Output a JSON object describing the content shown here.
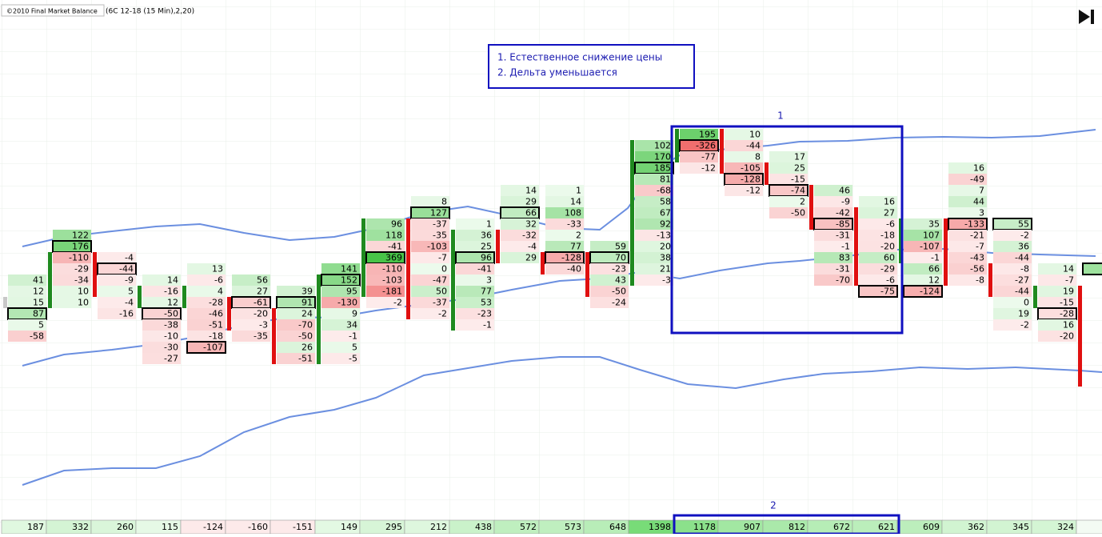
{
  "header": {
    "indicator": "©2010 Final Market Balance",
    "params": "(6C 12-18 (15 Min),2,20)"
  },
  "note": {
    "lines": [
      "1. Естественное снижение цены",
      "2. Дельта уменьшается"
    ]
  },
  "box_labels": [
    "1",
    "2"
  ],
  "columns": [
    {
      "level": 13,
      "cells": [
        41,
        12,
        15,
        87,
        5,
        -58
      ],
      "boxed": 3,
      "body": [
        2,
        2
      ],
      "body_color": "#c8c8c8",
      "total": 187
    },
    {
      "level": 9,
      "cells": [
        122,
        176,
        -110,
        -29,
        -34,
        10,
        10
      ],
      "boxed": 1,
      "body": [
        2,
        6
      ],
      "body_color": "#1f8a1f",
      "total": 332
    },
    {
      "level": 11,
      "cells": [
        -4,
        -44,
        -9,
        5,
        -4,
        -16
      ],
      "boxed": 1,
      "body": [
        0,
        3
      ],
      "body_color": "#e01010",
      "total": 260
    },
    {
      "level": 13,
      "cells": [
        14,
        -16,
        12,
        -50,
        -38,
        -10,
        -30,
        -27
      ],
      "boxed": 3,
      "body": [
        1,
        2
      ],
      "body_color": "#1f8a1f",
      "total": 115
    },
    {
      "level": 12,
      "cells": [
        13,
        -6,
        4,
        -28,
        -46,
        -51,
        -18,
        -107
      ],
      "boxed": 7,
      "body": [
        2,
        3
      ],
      "body_color": "#1f8a1f",
      "total": -124
    },
    {
      "level": 13,
      "cells": [
        56,
        27,
        -61,
        -20,
        -3,
        -35
      ],
      "boxed": 2,
      "body": [
        2,
        4
      ],
      "body_color": "#e01010",
      "total": -160
    },
    {
      "level": 14,
      "cells": [
        39,
        91,
        24,
        -70,
        -50,
        26,
        -51
      ],
      "boxed": 1,
      "body": [
        2,
        6
      ],
      "body_color": "#e01010",
      "total": -151
    },
    {
      "level": 12,
      "cells": [
        141,
        152,
        95,
        -130,
        9,
        34,
        -1,
        5,
        -5
      ],
      "boxed": 1,
      "body": [
        1,
        8
      ],
      "body_color": "#1f8a1f",
      "total": 149
    },
    {
      "level": 8,
      "cells": [
        96,
        118,
        -41,
        369,
        -110,
        -103,
        -181,
        -2
      ],
      "boxed": 3,
      "body": [
        0,
        6
      ],
      "body_color": "#1f8a1f",
      "total": 295
    },
    {
      "level": 6,
      "cells": [
        8,
        127,
        -37,
        -35,
        -103,
        -7,
        0,
        -47,
        50,
        -37,
        -2
      ],
      "boxed": 1,
      "body": [
        2,
        10
      ],
      "body_color": "#e01010",
      "total": 212
    },
    {
      "level": 8,
      "cells": [
        1,
        36,
        25,
        96,
        -41,
        3,
        77,
        53,
        -23,
        -1
      ],
      "boxed": 3,
      "body": [
        1,
        9
      ],
      "body_color": "#1f8a1f",
      "total": 438
    },
    {
      "level": 5,
      "cells": [
        14,
        29,
        66,
        32,
        -32,
        -4,
        29
      ],
      "boxed": 2,
      "body": [
        4,
        6
      ],
      "body_color": "#e01010",
      "total": 572
    },
    {
      "level": 5,
      "cells": [
        1,
        14,
        108,
        -33,
        2,
        77,
        -128,
        -40
      ],
      "boxed": 6,
      "body": [
        6,
        7
      ],
      "body_color": "#e01010",
      "total": 573
    },
    {
      "level": 10,
      "cells": [
        59,
        70,
        -23,
        43,
        -50,
        -24
      ],
      "boxed": 1,
      "body": [
        1,
        4
      ],
      "body_color": "#e01010",
      "total": 648
    },
    {
      "level": 1,
      "cells": [
        102,
        170,
        185,
        81,
        -68,
        58,
        67,
        92,
        -13,
        20,
        38,
        21,
        -3
      ],
      "boxed": 2,
      "body": [
        0,
        12
      ],
      "body_color": "#1f8a1f",
      "total": 1398
    },
    {
      "level": 0,
      "cells": [
        195,
        -326,
        -77,
        -12
      ],
      "boxed": 1,
      "body": [
        0,
        2
      ],
      "body_color": "#1f8a1f",
      "total": 1178
    },
    {
      "level": 0,
      "cells": [
        10,
        -44,
        8,
        -105,
        -128,
        -12
      ],
      "boxed": 4,
      "body": [
        0,
        3
      ],
      "body_color": "#e01010",
      "total": 907
    },
    {
      "level": 2,
      "cells": [
        17,
        25,
        -15,
        -74,
        2,
        -50
      ],
      "boxed": 3,
      "body": [
        1,
        2
      ],
      "body_color": "#e01010",
      "total": 812
    },
    {
      "level": 5,
      "cells": [
        46,
        -9,
        -42,
        -85,
        -31,
        -1,
        83,
        -31,
        -70
      ],
      "boxed": 3,
      "body": [
        0,
        3
      ],
      "body_color": "#e01010",
      "total": 672
    },
    {
      "level": 6,
      "cells": [
        16,
        27,
        -6,
        -18,
        -20,
        60,
        -29,
        -6,
        -75
      ],
      "boxed": 8,
      "body": [
        1,
        7
      ],
      "body_color": "#e01010",
      "total": 621
    },
    {
      "level": 8,
      "cells": [
        35,
        107,
        -107,
        -1,
        66,
        12,
        -124
      ],
      "boxed": 6,
      "body": [
        0,
        3
      ],
      "body_color": "#1f8a1f",
      "total": 609
    },
    {
      "level": 3,
      "cells": [
        16,
        -49,
        7,
        44,
        3,
        -133,
        -21,
        -7,
        -43,
        -56,
        -8
      ],
      "boxed": 5,
      "body": [
        5,
        10
      ],
      "body_color": "#e01010",
      "total": 362
    },
    {
      "level": 8,
      "cells": [
        55,
        -2,
        36,
        -44,
        -8,
        -27,
        -44,
        0,
        19,
        -2
      ],
      "boxed": 0,
      "body": [
        4,
        6
      ],
      "body_color": "#e01010",
      "total": 345
    },
    {
      "level": 12,
      "cells": [
        14,
        -7,
        19,
        -15,
        -28,
        16,
        -20
      ],
      "boxed": 4,
      "body": [
        2,
        3
      ],
      "body_color": "#1f8a1f",
      "total": 324
    }
  ]
}
